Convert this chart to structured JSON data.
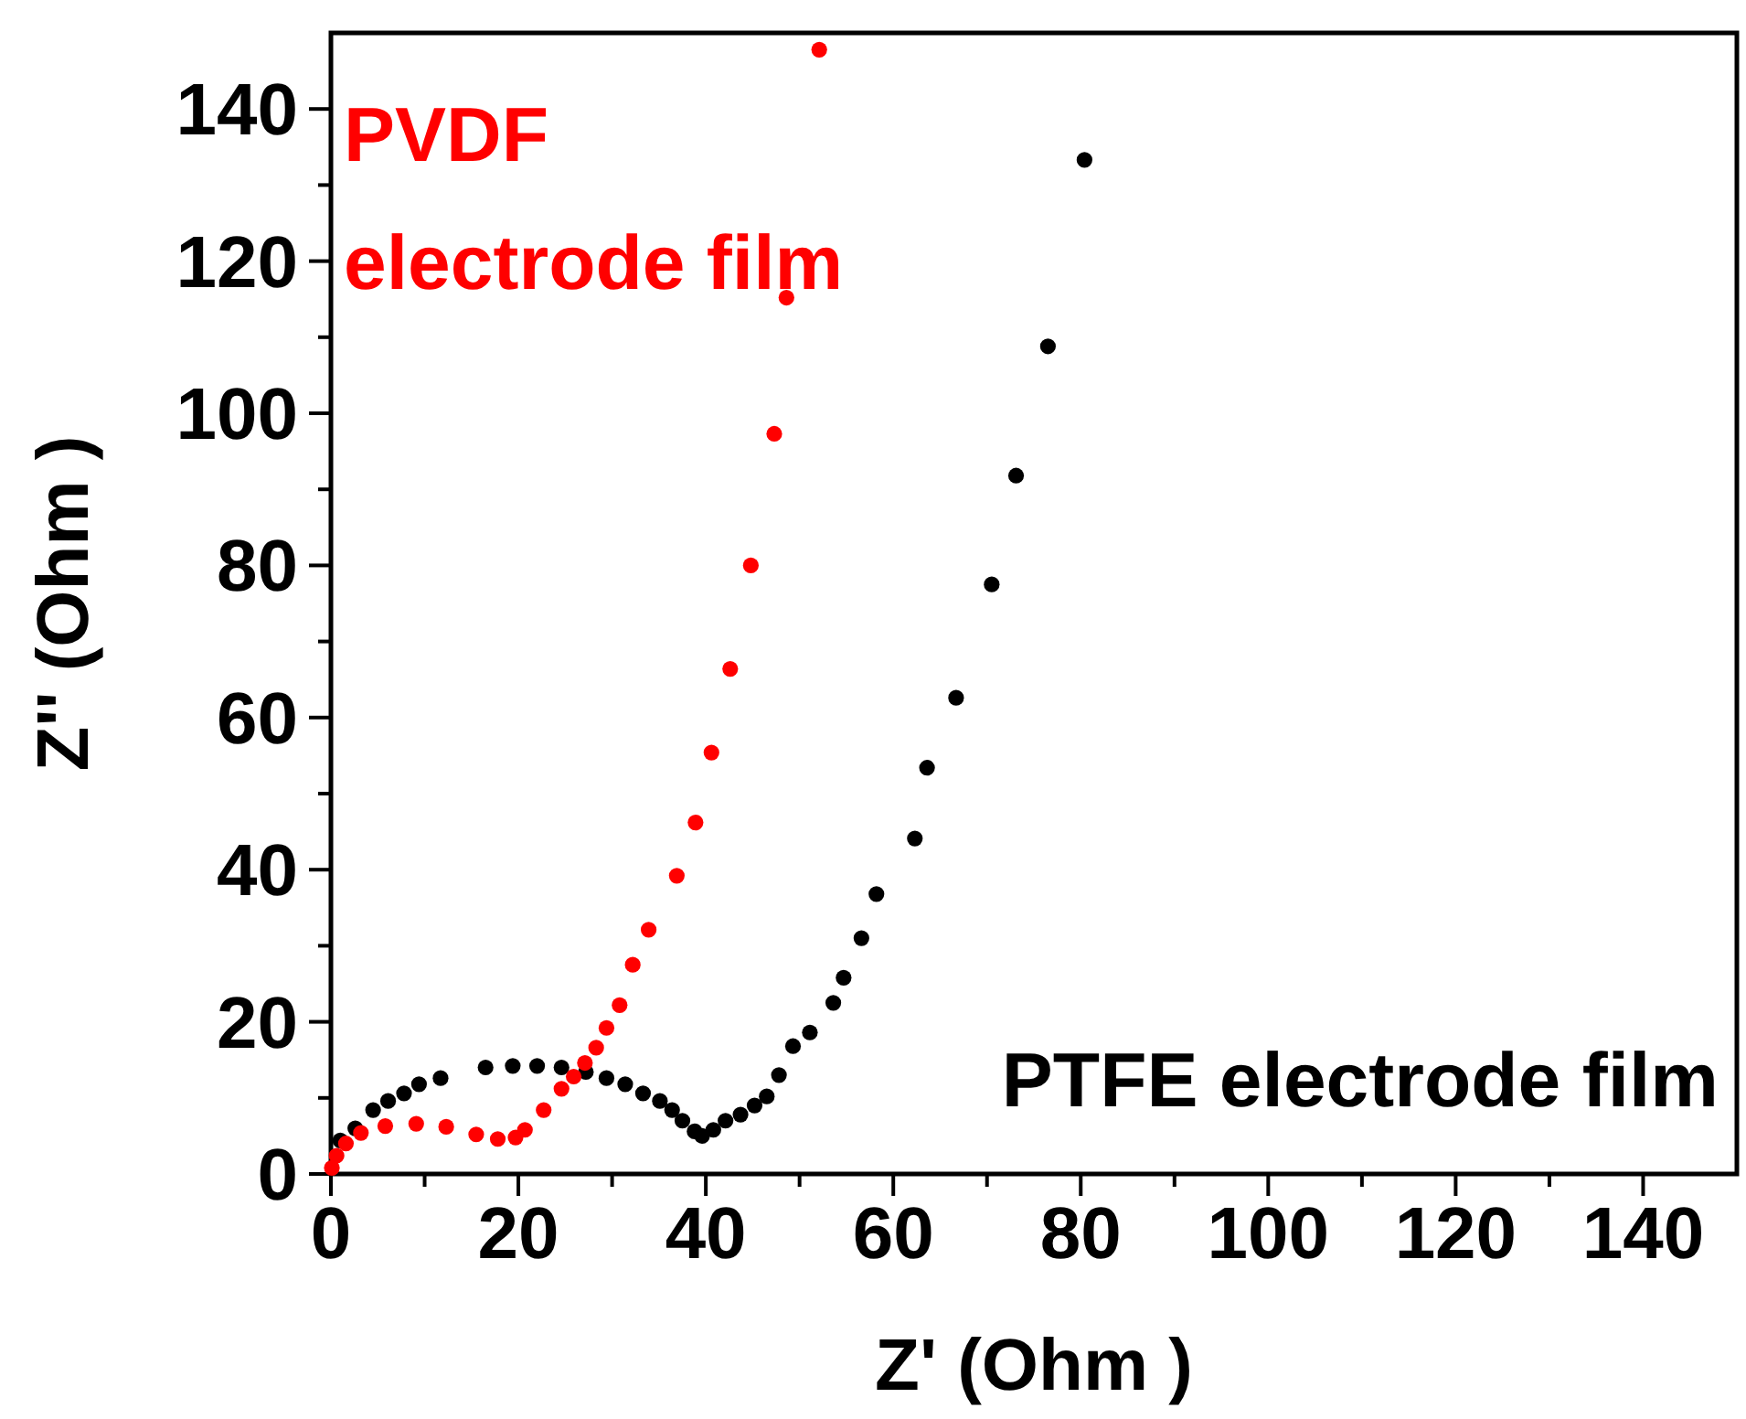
{
  "chart_data": {
    "type": "scatter",
    "xlabel": "Z' (Ohm )",
    "ylabel": "Z'' (Ohm )",
    "xlim": [
      0,
      150
    ],
    "ylim": [
      0,
      150
    ],
    "xticks": [
      0,
      {
        "value": 10,
        "label": null
      },
      20,
      {
        "value": 30,
        "label": null
      },
      40,
      {
        "value": 50,
        "label": null
      },
      60,
      {
        "value": 70,
        "label": null
      },
      80,
      {
        "value": 90,
        "label": null
      },
      100,
      {
        "value": 110,
        "label": null
      },
      120,
      {
        "value": 130,
        "label": null
      },
      140
    ],
    "yticks": [
      0,
      {
        "value": 10,
        "label": null
      },
      20,
      {
        "value": 30,
        "label": null
      },
      40,
      {
        "value": 50,
        "label": null
      },
      60,
      {
        "value": 70,
        "label": null
      },
      80,
      {
        "value": 90,
        "label": null
      },
      100,
      {
        "value": 110,
        "label": null
      },
      120,
      {
        "value": 130,
        "label": null
      },
      140
    ],
    "marker": "circle",
    "grid": false,
    "legend": false,
    "series": [
      {
        "name": "PVDF electrode film",
        "color": "#ff0000",
        "x": [
          0.1,
          0.6,
          1.6,
          3.2,
          5.8,
          9.1,
          12.3,
          15.5,
          17.8,
          19.7,
          20.7,
          22.7,
          24.6,
          25.9,
          27.1,
          28.3,
          29.4,
          30.8,
          32.2,
          33.9,
          36.9,
          38.9,
          40.6,
          42.6,
          44.8,
          47.3,
          48.6,
          52.1
        ],
        "values": [
          0.8,
          2.4,
          4,
          5.4,
          6.3,
          6.6,
          6.2,
          5.2,
          4.6,
          4.8,
          5.8,
          8.4,
          11.2,
          12.8,
          14.6,
          16.6,
          19.2,
          22.2,
          27.5,
          32.1,
          39.2,
          46.2,
          55.4,
          66.4,
          80,
          97.3,
          115.2,
          147.8
        ]
      },
      {
        "name": "PTFE electrode film",
        "color": "#000000",
        "x": [
          1,
          2.6,
          4.5,
          6.1,
          7.8,
          9.4,
          11.7,
          16.5,
          19.4,
          22,
          24.6,
          27.2,
          29.4,
          31.4,
          33.3,
          35.1,
          36.4,
          37.5,
          38.8,
          39.6,
          40.8,
          42.1,
          43.7,
          45.2,
          46.5,
          47.8,
          49.3,
          51.1,
          53.6,
          54.7,
          56.6,
          58.2,
          62.3,
          63.6,
          66.7,
          70.5,
          73.1,
          76.5,
          80.4
        ],
        "values": [
          4.4,
          6,
          8.4,
          9.6,
          10.6,
          11.8,
          12.6,
          14,
          14.2,
          14.2,
          14,
          13.4,
          12.6,
          11.8,
          10.6,
          9.6,
          8.4,
          7,
          5.6,
          5,
          5.8,
          7,
          7.8,
          9,
          10.2,
          13,
          16.8,
          18.6,
          22.5,
          25.8,
          31,
          36.8,
          44.1,
          53.4,
          62.6,
          77.5,
          91.8,
          108.8,
          133.3
        ]
      }
    ]
  }
}
